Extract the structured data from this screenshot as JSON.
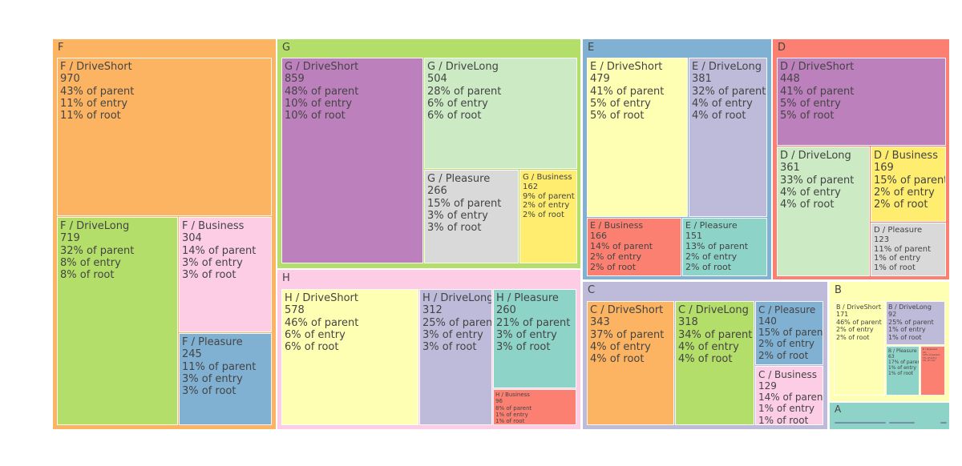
{
  "chart_data": {
    "type": "treemap",
    "title": "",
    "value_suffixes": {
      "parent": "of parent",
      "entry": "of entry",
      "root": "of root"
    },
    "colors": {
      "orange": "#fdb462",
      "green": "#b3de69",
      "blue": "#80b1d3",
      "red": "#fb8072",
      "pink": "#fccde5",
      "lavender": "#bebada",
      "yellow": "#ffffb3",
      "teal": "#8dd3c7",
      "purple": "#bc80bd",
      "mint": "#ccebc5",
      "gray": "#d9d9d9",
      "gold": "#ffed6f"
    },
    "groups": [
      {
        "label": "F",
        "color": "#fdb462",
        "children": [
          {
            "label": "F / DriveShort",
            "value": 970,
            "parent": "43%",
            "entry": "11%",
            "root": "11%",
            "color": "#fdb462"
          },
          {
            "label": "F / DriveLong",
            "value": 719,
            "parent": "32%",
            "entry": "8%",
            "root": "8%",
            "color": "#b3de69"
          },
          {
            "label": "F / Business",
            "value": 304,
            "parent": "14%",
            "entry": "3%",
            "root": "3%",
            "color": "#fccde5"
          },
          {
            "label": "F / Pleasure",
            "value": 245,
            "parent": "11%",
            "entry": "3%",
            "root": "3%",
            "color": "#80b1d3"
          }
        ]
      },
      {
        "label": "G",
        "color": "#b3de69",
        "children": [
          {
            "label": "G / DriveShort",
            "value": 859,
            "parent": "48%",
            "entry": "10%",
            "root": "10%",
            "color": "#bc80bd"
          },
          {
            "label": "G / DriveLong",
            "value": 504,
            "parent": "28%",
            "entry": "6%",
            "root": "6%",
            "color": "#ccebc5"
          },
          {
            "label": "G / Pleasure",
            "value": 266,
            "parent": "15%",
            "entry": "3%",
            "root": "3%",
            "color": "#d9d9d9"
          },
          {
            "label": "G / Business",
            "value": 162,
            "parent": "9%",
            "entry": "2%",
            "root": "2%",
            "color": "#ffed6f"
          }
        ]
      },
      {
        "label": "H",
        "color": "#fccde5",
        "children": [
          {
            "label": "H / DriveShort",
            "value": 578,
            "parent": "46%",
            "entry": "6%",
            "root": "6%",
            "color": "#ffffb3"
          },
          {
            "label": "H / DriveLong",
            "value": 312,
            "parent": "25%",
            "entry": "3%",
            "root": "3%",
            "color": "#bebada"
          },
          {
            "label": "H / Pleasure",
            "value": 260,
            "parent": "21%",
            "entry": "3%",
            "root": "3%",
            "color": "#8dd3c7"
          },
          {
            "label": "H / Business",
            "value": 96,
            "parent": "8%",
            "entry": "1%",
            "root": "1%",
            "color": "#fb8072"
          }
        ]
      },
      {
        "label": "E",
        "color": "#80b1d3",
        "children": [
          {
            "label": "E / DriveShort",
            "value": 479,
            "parent": "41%",
            "entry": "5%",
            "root": "5%",
            "color": "#ffffb3"
          },
          {
            "label": "E / DriveLong",
            "value": 381,
            "parent": "32%",
            "entry": "4%",
            "root": "4%",
            "color": "#bebada"
          },
          {
            "label": "E / Business",
            "value": 166,
            "parent": "14%",
            "entry": "2%",
            "root": "2%",
            "color": "#fb8072"
          },
          {
            "label": "E / Pleasure",
            "value": 151,
            "parent": "13%",
            "entry": "2%",
            "root": "2%",
            "color": "#8dd3c7"
          }
        ]
      },
      {
        "label": "D",
        "color": "#fb8072",
        "children": [
          {
            "label": "D / DriveShort",
            "value": 448,
            "parent": "41%",
            "entry": "5%",
            "root": "5%",
            "color": "#bc80bd"
          },
          {
            "label": "D / DriveLong",
            "value": 361,
            "parent": "33%",
            "entry": "4%",
            "root": "4%",
            "color": "#ccebc5"
          },
          {
            "label": "D / Business",
            "value": 169,
            "parent": "15%",
            "entry": "2%",
            "root": "2%",
            "color": "#ffed6f"
          },
          {
            "label": "D / Pleasure",
            "value": 123,
            "parent": "11%",
            "entry": "1%",
            "root": "1%",
            "color": "#d9d9d9"
          }
        ]
      },
      {
        "label": "C",
        "color": "#bebada",
        "children": [
          {
            "label": "C / DriveShort",
            "value": 343,
            "parent": "37%",
            "entry": "4%",
            "root": "4%",
            "color": "#fdb462"
          },
          {
            "label": "C / DriveLong",
            "value": 318,
            "parent": "34%",
            "entry": "4%",
            "root": "4%",
            "color": "#b3de69"
          },
          {
            "label": "C / Pleasure",
            "value": 140,
            "parent": "15%",
            "entry": "2%",
            "root": "2%",
            "color": "#80b1d3"
          },
          {
            "label": "C / Business",
            "value": 129,
            "parent": "14%",
            "entry": "1%",
            "root": "1%",
            "color": "#fccde5"
          }
        ]
      },
      {
        "label": "B",
        "color": "#ffffb3",
        "children": [
          {
            "label": "B / DriveShort",
            "value": 171,
            "parent": "46%",
            "entry": "2%",
            "root": "2%",
            "color": "#ffffb3"
          },
          {
            "label": "B / DriveLong",
            "value": 92,
            "parent": "25%",
            "entry": "1%",
            "root": "1%",
            "color": "#bebada"
          },
          {
            "label": "B / Pleasure",
            "value": 63,
            "parent": "17%",
            "entry": "1%",
            "root": "1%",
            "color": "#8dd3c7"
          },
          {
            "label": "B / Business",
            "value": 44,
            "parent": "12%",
            "entry": "1%",
            "root": "1%",
            "color": "#fb8072"
          }
        ]
      },
      {
        "label": "A",
        "color": "#8dd3c7",
        "children": []
      }
    ]
  }
}
